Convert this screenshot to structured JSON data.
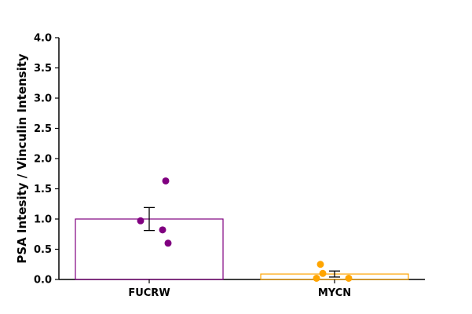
{
  "chart_data": {
    "type": "bar",
    "title": "",
    "xlabel": "",
    "ylabel": "PSA Intesity / Vinculin Intensity",
    "ylim": [
      0,
      4.0
    ],
    "yticks": [
      "0.0",
      "0.5",
      "1.0",
      "1.5",
      "2.0",
      "2.5",
      "3.0",
      "3.5",
      "4.0"
    ],
    "grid": false,
    "categories": [
      "FUCRW",
      "MYCN"
    ],
    "bars": [
      {
        "category": "FUCRW",
        "value": 1.0,
        "error": 0.19,
        "color": "#800080",
        "points": [
          {
            "offset": 0.21,
            "y": 1.63
          },
          {
            "offset": -0.11,
            "y": 0.97
          },
          {
            "offset": 0.17,
            "y": 0.82
          },
          {
            "offset": 0.24,
            "y": 0.6
          }
        ]
      },
      {
        "category": "MYCN",
        "value": 0.09,
        "error": 0.05,
        "color": "#FFA500",
        "points": [
          {
            "offset": -0.18,
            "y": 0.25
          },
          {
            "offset": -0.15,
            "y": 0.1
          },
          {
            "offset": -0.23,
            "y": 0.02
          },
          {
            "offset": 0.18,
            "y": 0.02
          }
        ]
      }
    ]
  }
}
